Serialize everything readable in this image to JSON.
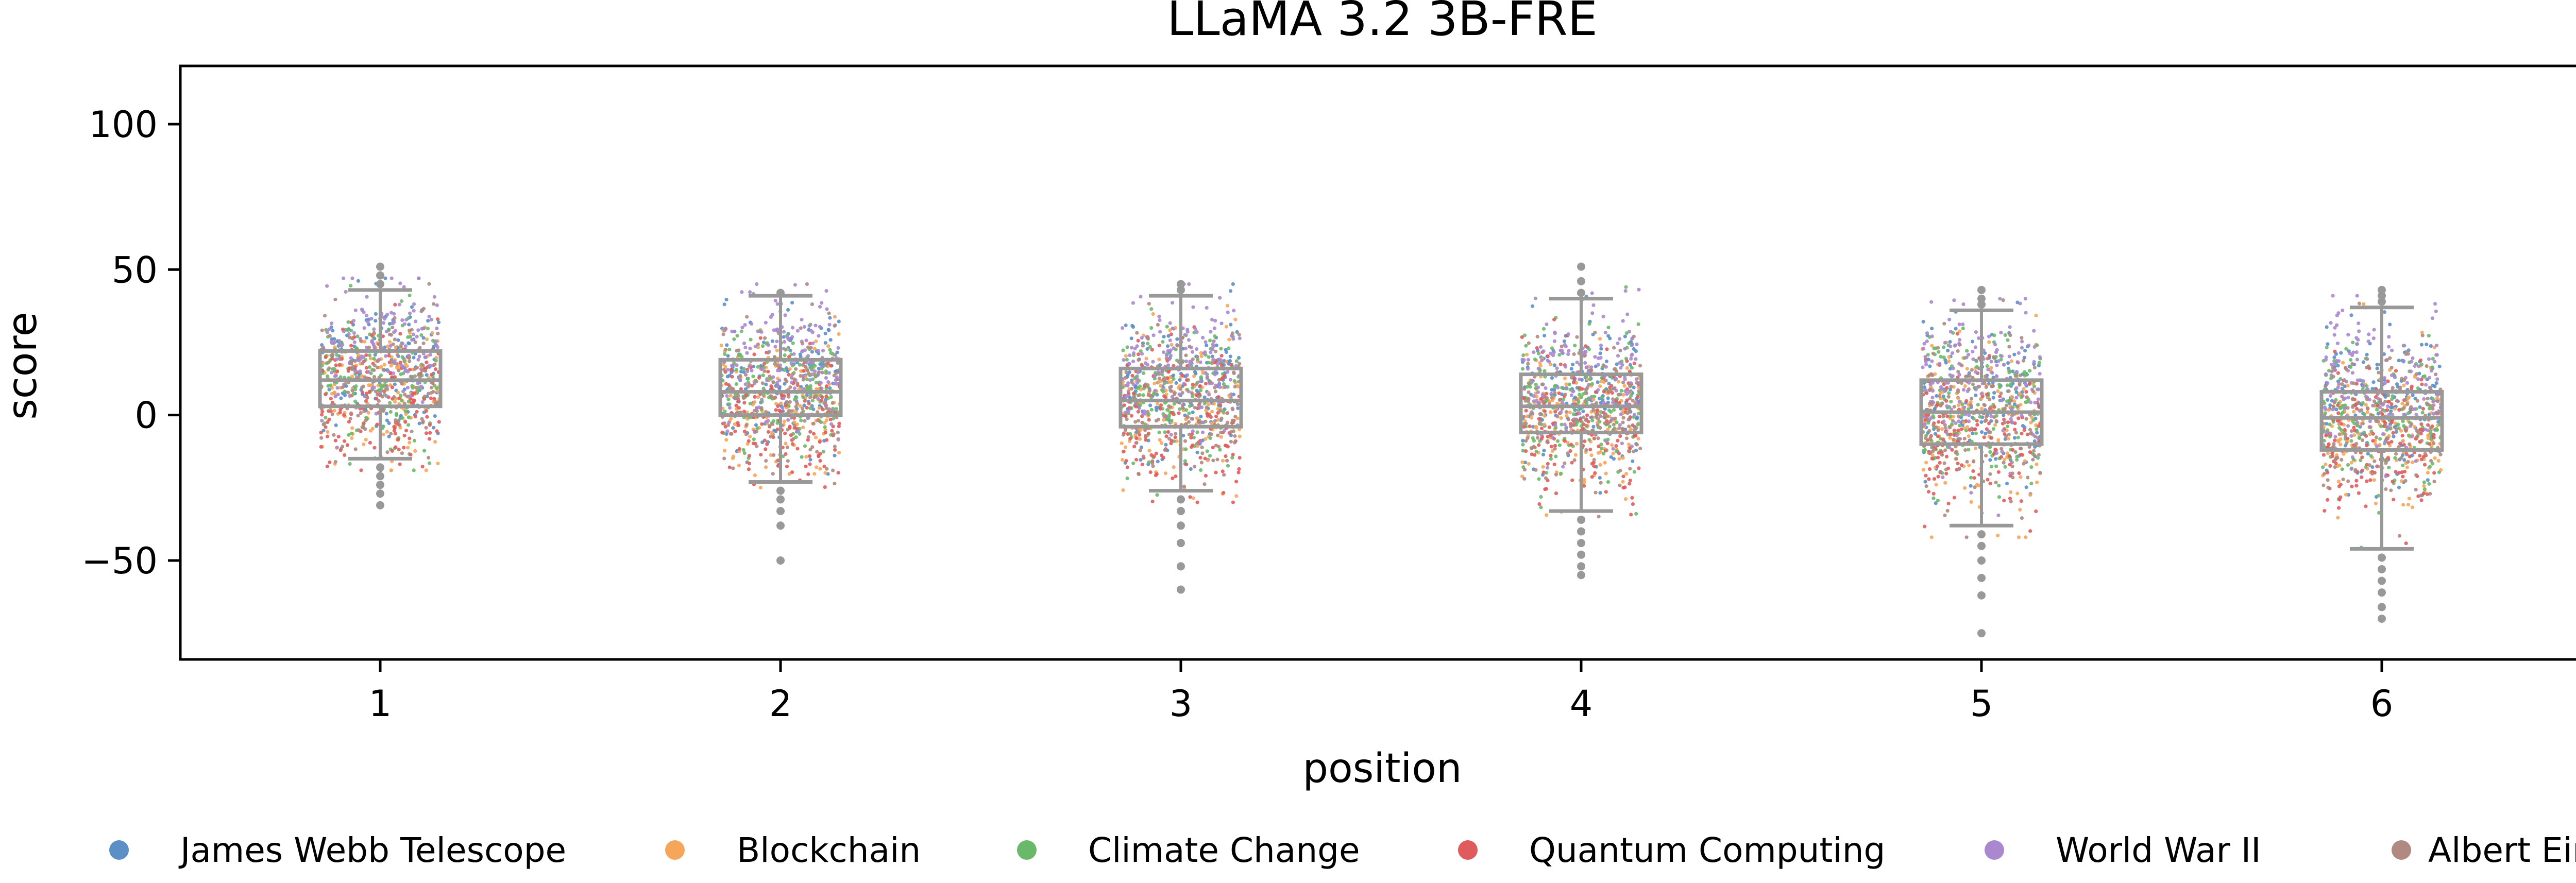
{
  "chart_data": {
    "type": "scatter",
    "subtype": "box-strip",
    "title": "LLaMA 3.2 3B-FRE",
    "xlabel": "position",
    "ylabel": "score",
    "categories": [
      "1",
      "2",
      "3",
      "4",
      "5",
      "6"
    ],
    "x_ticks": [
      "1",
      "2",
      "3",
      "4",
      "5",
      "6"
    ],
    "y_ticks": [
      "100",
      "50",
      "0",
      "−50"
    ],
    "y_tick_values": [
      100,
      50,
      0,
      -50
    ],
    "ylim": [
      -84,
      120
    ],
    "grid": false,
    "legend_position": "bottom",
    "box_color": "#999999",
    "boxes": [
      {
        "position": "1",
        "whisker_low": -15,
        "q1": 3,
        "median": 12,
        "q3": 22,
        "whisker_high": 43,
        "outliers_low": [
          -18,
          -21,
          -24,
          -27,
          -31
        ],
        "outliers_high": [
          45,
          48,
          51
        ]
      },
      {
        "position": "2",
        "whisker_low": -23,
        "q1": 0,
        "median": 8,
        "q3": 19,
        "whisker_high": 41,
        "outliers_low": [
          -26,
          -29,
          -33,
          -38,
          -50
        ],
        "outliers_high": [
          42
        ]
      },
      {
        "position": "3",
        "whisker_low": -26,
        "q1": -4,
        "median": 5,
        "q3": 16,
        "whisker_high": 41,
        "outliers_low": [
          -29,
          -33,
          -38,
          -44,
          -52,
          -60
        ],
        "outliers_high": [
          43,
          45
        ]
      },
      {
        "position": "4",
        "whisker_low": -33,
        "q1": -6,
        "median": 3,
        "q3": 14,
        "whisker_high": 40,
        "outliers_low": [
          -36,
          -40,
          -44,
          -48,
          -52,
          -55
        ],
        "outliers_high": [
          42,
          46,
          51
        ]
      },
      {
        "position": "5",
        "whisker_low": -38,
        "q1": -10,
        "median": 1,
        "q3": 12,
        "whisker_high": 36,
        "outliers_low": [
          -41,
          -45,
          -50,
          -56,
          -62,
          -75
        ],
        "outliers_high": [
          38,
          40,
          43
        ]
      },
      {
        "position": "6",
        "whisker_low": -46,
        "q1": -12,
        "median": -1,
        "q3": 8,
        "whisker_high": 37,
        "outliers_low": [
          -49,
          -53,
          -57,
          -61,
          -66,
          -70
        ],
        "outliers_high": [
          39,
          41,
          43
        ]
      }
    ],
    "series": [
      {
        "name": "James Webb Telescope",
        "color": "#5b8fc6",
        "mean_offset": 5
      },
      {
        "name": "Blockchain",
        "color": "#f6a65a",
        "mean_offset": -4
      },
      {
        "name": "Climate Change",
        "color": "#6ab96a",
        "mean_offset": 1
      },
      {
        "name": "Quantum Computing",
        "color": "#e05c5c",
        "mean_offset": -7
      },
      {
        "name": "World War II",
        "color": "#aa88d0",
        "mean_offset": 12
      },
      {
        "name": "Albert Einstein",
        "color": "#b08a80",
        "mean_offset": -2
      }
    ]
  }
}
